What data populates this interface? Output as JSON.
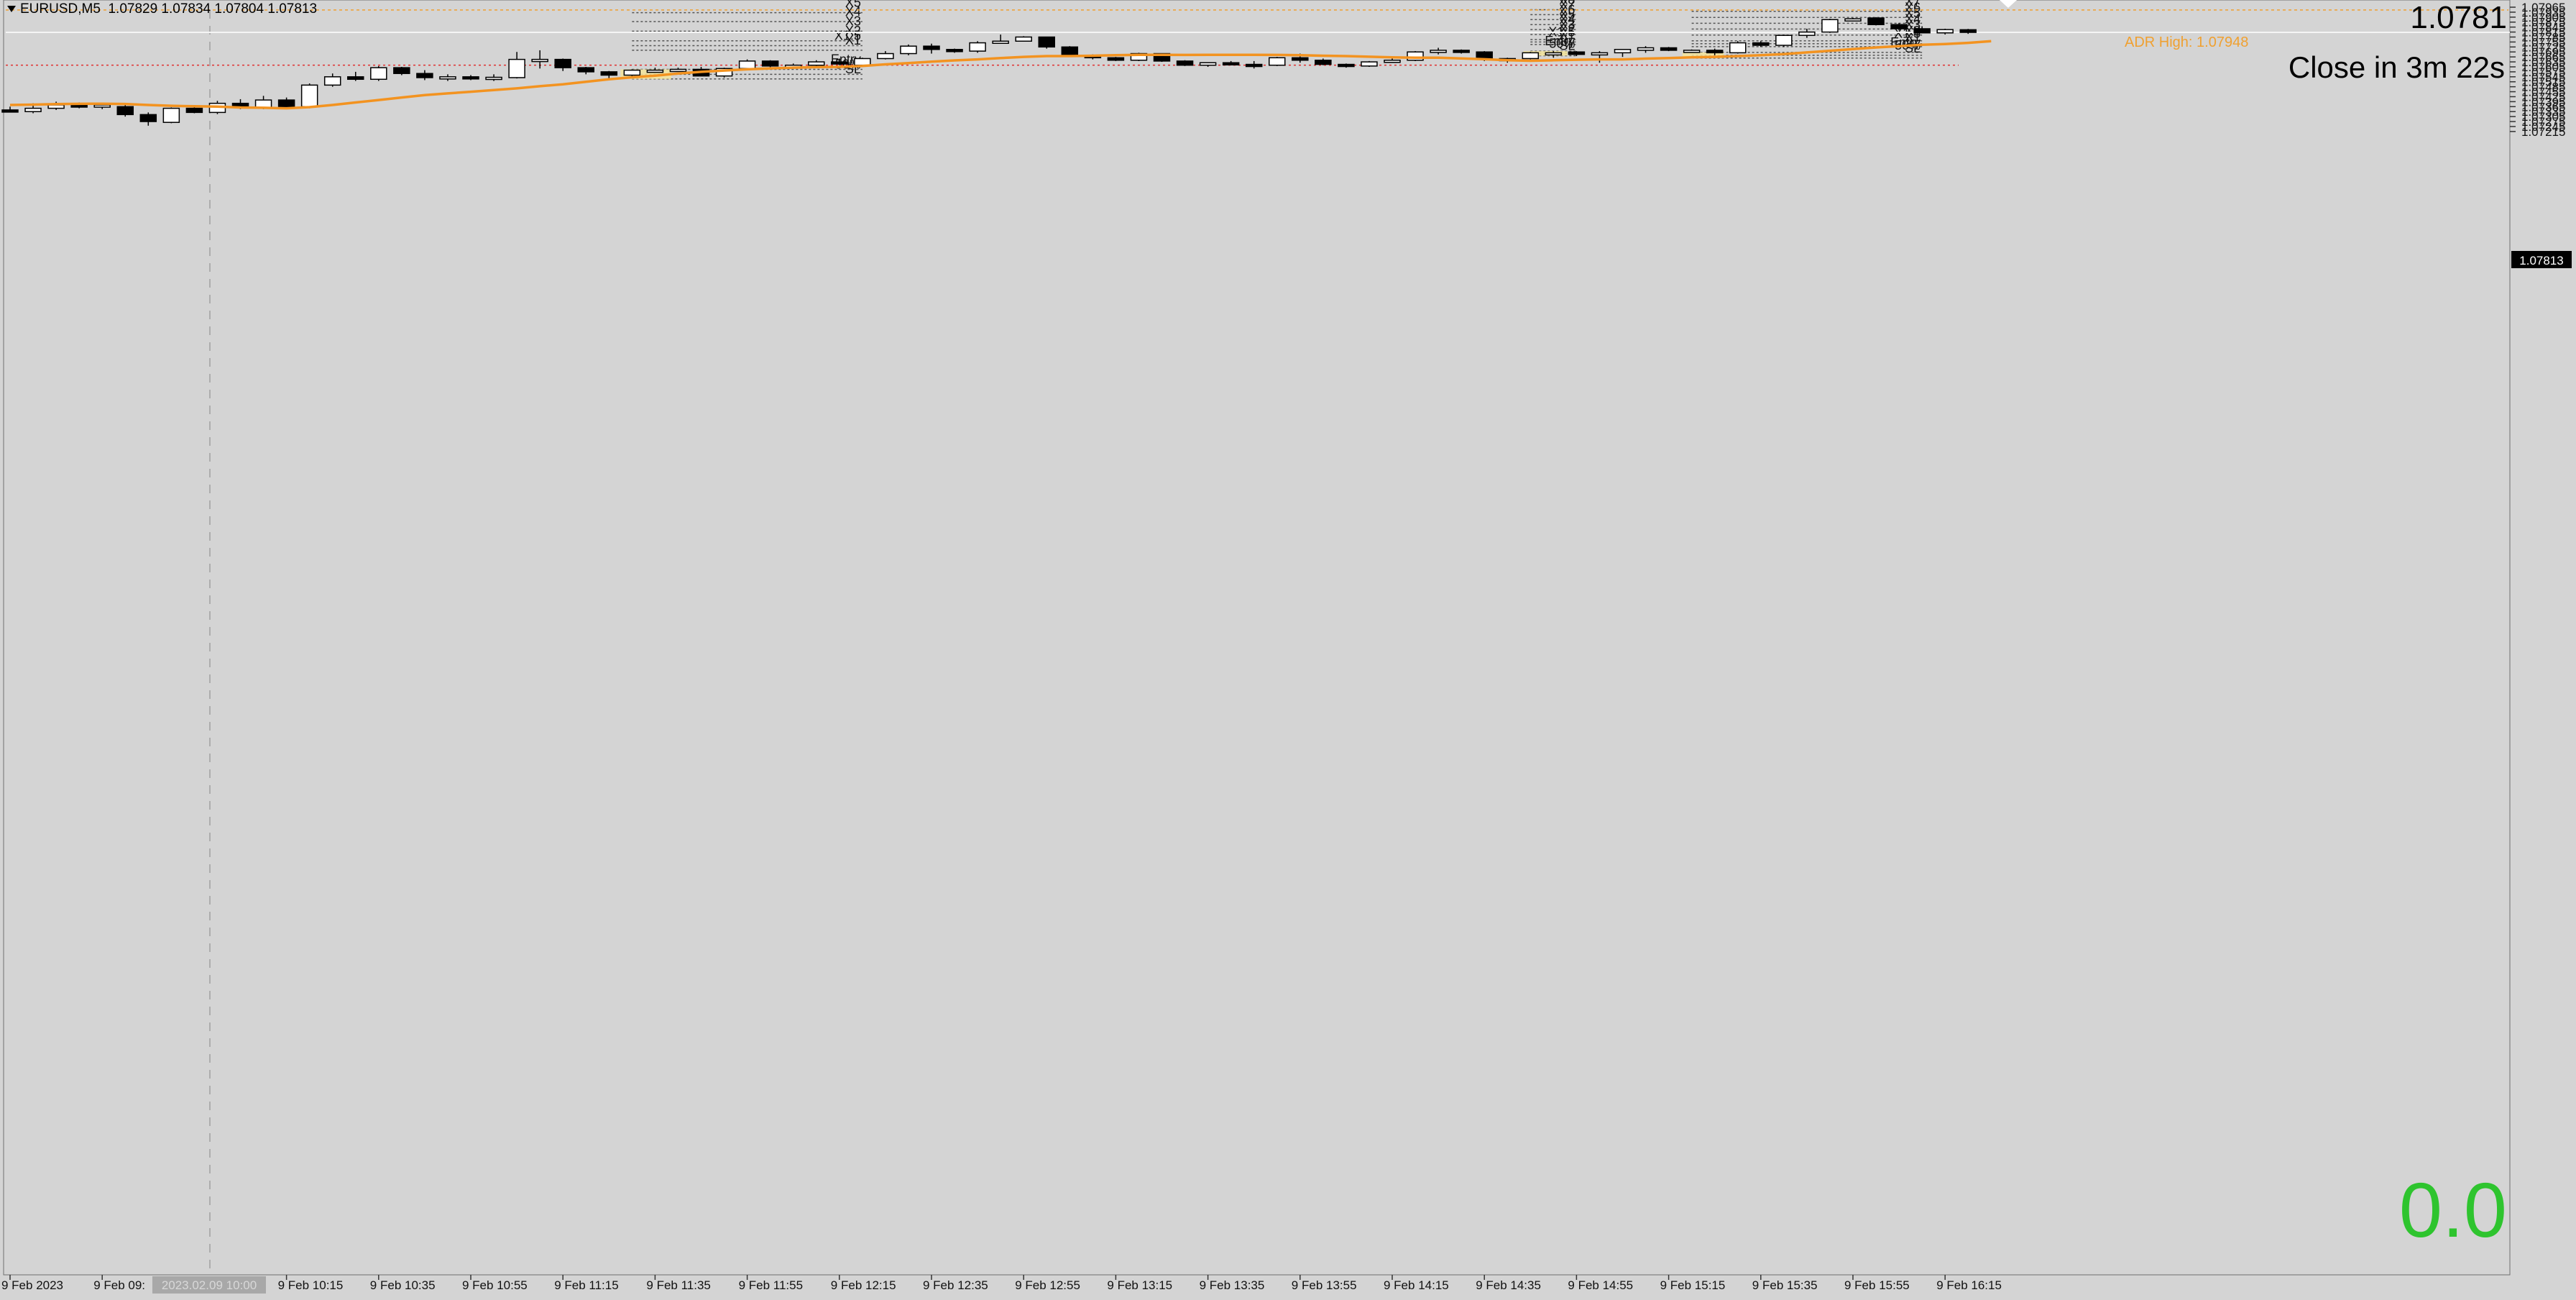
{
  "header": {
    "symbol": "EURUSD,M5",
    "ohlc": "1.07829 1.07834 1.07804 1.07813"
  },
  "overlay": {
    "price_big": "1.0781",
    "close_timer": "Close in 3m 22s",
    "adr_high": "ADR High: 1.07948",
    "counter": "0.0",
    "current_price_tag": "1.07813"
  },
  "colors": {
    "background": "#d4d4d4",
    "ma_line": "#f39320",
    "bull_fill": "#ffffff",
    "bear_fill": "#000000",
    "entry_box": "#f3e49a",
    "adr_line": "#f0a030",
    "red_level": "#e03030",
    "counter": "#2ec42e"
  },
  "chart_data": {
    "type": "candlestick",
    "symbol": "EURUSD",
    "timeframe": "M5",
    "ylim": [
      1.072,
      1.0796
    ],
    "y_ticks": [
      "1.07965",
      "1.07935",
      "1.07905",
      "1.07875",
      "1.07845",
      "1.07815",
      "1.07785",
      "1.07755",
      "1.07725",
      "1.07695",
      "1.07665",
      "1.07635",
      "1.07605",
      "1.07575",
      "1.07545",
      "1.07515",
      "1.07485",
      "1.07455",
      "1.07425",
      "1.07395",
      "1.07365",
      "1.07335",
      "1.07305",
      "1.07275",
      "1.07245",
      "1.07215"
    ],
    "x_ticks": [
      {
        "i": 0,
        "label": "9 Feb 2023"
      },
      {
        "i": 4,
        "label": "9 Feb 09:"
      },
      {
        "i": 12,
        "label": "9 Feb 10:15"
      },
      {
        "i": 16,
        "label": "9 Feb 10:35"
      },
      {
        "i": 20,
        "label": "9 Feb 10:55"
      },
      {
        "i": 24,
        "label": "9 Feb 11:15"
      },
      {
        "i": 28,
        "label": "9 Feb 11:35"
      },
      {
        "i": 32,
        "label": "9 Feb 11:55"
      },
      {
        "i": 36,
        "label": "9 Feb 12:15"
      },
      {
        "i": 40,
        "label": "9 Feb 12:35"
      },
      {
        "i": 44,
        "label": "9 Feb 12:55"
      },
      {
        "i": 48,
        "label": "9 Feb 13:15"
      },
      {
        "i": 52,
        "label": "9 Feb 13:35"
      },
      {
        "i": 56,
        "label": "9 Feb 13:55"
      },
      {
        "i": 60,
        "label": "9 Feb 14:15"
      },
      {
        "i": 64,
        "label": "9 Feb 14:35"
      },
      {
        "i": 68,
        "label": "9 Feb 14:55"
      },
      {
        "i": 72,
        "label": "9 Feb 15:15"
      },
      {
        "i": 76,
        "label": "9 Feb 15:35"
      },
      {
        "i": 80,
        "label": "9 Feb 15:55"
      },
      {
        "i": 84,
        "label": "9 Feb 16:15"
      }
    ],
    "crosshair_time_label": "2023.02.09 10:00",
    "candles": [
      [
        1.07345,
        1.07365,
        1.0733,
        1.07335
      ],
      [
        1.07335,
        1.07385,
        1.07325,
        1.07355
      ],
      [
        1.07355,
        1.07395,
        1.07345,
        1.07375
      ],
      [
        1.07375,
        1.0739,
        1.07355,
        1.07362
      ],
      [
        1.07362,
        1.0739,
        1.0735,
        1.07375
      ],
      [
        1.07365,
        1.07375,
        1.07305,
        1.07317
      ],
      [
        1.07317,
        1.0733,
        1.0725,
        1.07275
      ],
      [
        1.0727,
        1.0736,
        1.07265,
        1.07355
      ],
      [
        1.07355,
        1.07375,
        1.07325,
        1.0733
      ],
      [
        1.0733,
        1.074,
        1.0732,
        1.07385
      ],
      [
        1.07385,
        1.0741,
        1.0735,
        1.0736
      ],
      [
        1.0736,
        1.0743,
        1.0735,
        1.07405
      ],
      [
        1.07405,
        1.0742,
        1.07355,
        1.07365
      ],
      [
        1.07365,
        1.07505,
        1.07355,
        1.07495
      ],
      [
        1.07495,
        1.07565,
        1.07485,
        1.07545
      ],
      [
        1.07545,
        1.07575,
        1.0752,
        1.0753
      ],
      [
        1.0753,
        1.0761,
        1.0752,
        1.076
      ],
      [
        1.076,
        1.07605,
        1.07555,
        1.07565
      ],
      [
        1.07565,
        1.07585,
        1.07525,
        1.0754
      ],
      [
        1.0754,
        1.0756,
        1.0752,
        1.07545
      ],
      [
        1.07545,
        1.07555,
        1.07525,
        1.0754
      ],
      [
        1.0754,
        1.0756,
        1.0752,
        1.07542
      ],
      [
        1.0754,
        1.07695,
        1.07535,
        1.0765
      ],
      [
        1.0765,
        1.07705,
        1.07595,
        1.0765
      ],
      [
        1.0765,
        1.07655,
        1.0758,
        1.076
      ],
      [
        1.076,
        1.07605,
        1.0756,
        1.07575
      ],
      [
        1.07575,
        1.0758,
        1.0753,
        1.07555
      ],
      [
        1.07555,
        1.0759,
        1.0754,
        1.07585
      ],
      [
        1.0758,
        1.076,
        1.0757,
        1.07585
      ],
      [
        1.07585,
        1.076,
        1.07575,
        1.0759
      ],
      [
        1.0759,
        1.07605,
        1.07555,
        1.0755
      ],
      [
        1.0755,
        1.076,
        1.0754,
        1.07595
      ],
      [
        1.07595,
        1.0765,
        1.0759,
        1.0764
      ],
      [
        1.0764,
        1.07645,
        1.076,
        1.0761
      ],
      [
        1.0761,
        1.07625,
        1.07605,
        1.07615
      ],
      [
        1.07615,
        1.07645,
        1.07605,
        1.07635
      ],
      [
        1.07635,
        1.07655,
        1.07615,
        1.07625
      ],
      [
        1.07615,
        1.0766,
        1.0761,
        1.07655
      ],
      [
        1.07655,
        1.077,
        1.0765,
        1.07685
      ],
      [
        1.07685,
        1.0774,
        1.07675,
        1.0773
      ],
      [
        1.0773,
        1.07745,
        1.07685,
        1.0771
      ],
      [
        1.0771,
        1.07715,
        1.0769,
        1.077
      ],
      [
        1.077,
        1.0776,
        1.0769,
        1.0775
      ],
      [
        1.0775,
        1.078,
        1.07745,
        1.0776
      ],
      [
        1.0776,
        1.0779,
        1.0776,
        1.07785
      ],
      [
        1.07785,
        1.07785,
        1.07715,
        1.07725
      ],
      [
        1.07725,
        1.0773,
        1.07665,
        1.07675
      ],
      [
        1.07675,
        1.0768,
        1.0765,
        1.0766
      ],
      [
        1.0766,
        1.07665,
        1.0764,
        1.07645
      ],
      [
        1.07645,
        1.0769,
        1.0764,
        1.07685
      ],
      [
        1.07685,
        1.07685,
        1.07635,
        1.0764
      ],
      [
        1.0764,
        1.07645,
        1.0761,
        1.07615
      ],
      [
        1.07615,
        1.0763,
        1.07605,
        1.0763
      ],
      [
        1.0763,
        1.0764,
        1.07615,
        1.0762
      ],
      [
        1.0762,
        1.0764,
        1.07595,
        1.07615
      ],
      [
        1.07615,
        1.07665,
        1.0761,
        1.0766
      ],
      [
        1.0766,
        1.07685,
        1.0763,
        1.07645
      ],
      [
        1.07645,
        1.07655,
        1.07615,
        1.0762
      ],
      [
        1.0762,
        1.07625,
        1.076,
        1.0761
      ],
      [
        1.0761,
        1.0764,
        1.07605,
        1.07635
      ],
      [
        1.07635,
        1.07655,
        1.0763,
        1.07645
      ],
      [
        1.07645,
        1.077,
        1.0764,
        1.07695
      ],
      [
        1.07695,
        1.0772,
        1.0768,
        1.07705
      ],
      [
        1.07705,
        1.0771,
        1.07685,
        1.07698
      ],
      [
        1.07695,
        1.077,
        1.0764,
        1.0765
      ],
      [
        1.0765,
        1.0766,
        1.0763,
        1.07655
      ],
      [
        1.07655,
        1.07695,
        1.0765,
        1.0769
      ],
      [
        1.0769,
        1.077,
        1.0766,
        1.0769
      ],
      [
        1.07695,
        1.077,
        1.0767,
        1.0768
      ],
      [
        1.0768,
        1.077,
        1.0763,
        1.0769
      ],
      [
        1.0769,
        1.07705,
        1.07665,
        1.0771
      ],
      [
        1.07705,
        1.0773,
        1.0769,
        1.0772
      ],
      [
        1.0772,
        1.07725,
        1.077,
        1.07705
      ],
      [
        1.077,
        1.0771,
        1.0769,
        1.07705
      ],
      [
        1.07705,
        1.07715,
        1.07675,
        1.0769
      ],
      [
        1.0769,
        1.0776,
        1.07685,
        1.0775
      ],
      [
        1.0775,
        1.0776,
        1.07725,
        1.07735
      ],
      [
        1.07735,
        1.078,
        1.07725,
        1.07795
      ],
      [
        1.07795,
        1.07835,
        1.0778,
        1.07815
      ],
      [
        1.07815,
        1.07895,
        1.0781,
        1.0789
      ],
      [
        1.0789,
        1.079,
        1.0788,
        1.07895
      ],
      [
        1.079,
        1.07905,
        1.07855,
        1.0786
      ],
      [
        1.0786,
        1.0787,
        1.07825,
        1.07835
      ],
      [
        1.07835,
        1.0785,
        1.0781,
        1.0781
      ],
      [
        1.0781,
        1.07835,
        1.078,
        1.0783
      ],
      [
        1.07829,
        1.07834,
        1.07804,
        1.07813
      ]
    ],
    "ma": [
      1.07375,
      1.07377,
      1.0738,
      1.07382,
      1.07383,
      1.07381,
      1.07375,
      1.0737,
      1.07367,
      1.07365,
      1.0736,
      1.07358,
      1.07355,
      1.07362,
      1.07375,
      1.0739,
      1.07405,
      1.0742,
      1.07435,
      1.07445,
      1.07455,
      1.07465,
      1.07475,
      1.07488,
      1.075,
      1.07515,
      1.0753,
      1.07542,
      1.07552,
      1.07565,
      1.07575,
      1.07583,
      1.0759,
      1.07596,
      1.076,
      1.07603,
      1.07605,
      1.0761,
      1.0762,
      1.07628,
      1.07636,
      1.07644,
      1.0765,
      1.07658,
      1.07665,
      1.0767,
      1.0767,
      1.07672,
      1.07675,
      1.07678,
      1.07678,
      1.07677,
      1.07678,
      1.07678,
      1.07678,
      1.07677,
      1.07675,
      1.07672,
      1.0767,
      1.07666,
      1.07662,
      1.0766,
      1.0766,
      1.07656,
      1.07651,
      1.07645,
      1.07642,
      1.07645,
      1.07648,
      1.0765,
      1.0765,
      1.07655,
      1.07658,
      1.07662,
      1.07665,
      1.0767,
      1.07675,
      1.07682,
      1.07692,
      1.07702,
      1.07712,
      1.07722,
      1.0773,
      1.07738,
      1.07743,
      1.0775,
      1.0776
    ],
    "horizontal_lines": [
      {
        "name": "adr-high",
        "y": 1.07948
      },
      {
        "name": "red-level",
        "y": 1.07615
      },
      {
        "name": "current-price",
        "y": 1.07813
      }
    ],
    "setups": [
      {
        "x_range": [
          27,
          37
        ],
        "box_x": [
          26.5,
          28.7
        ],
        "levels": [
          {
            "label": "X5",
            "y": 1.07932
          },
          {
            "label": "X4",
            "y": 1.07878
          },
          {
            "label": "X3",
            "y": 1.0782
          },
          {
            "label": "X2",
            "y": 1.07762
          },
          {
            "label": "X1.5",
            "y": 1.07733
          },
          {
            "label": "X1",
            "y": 1.07705
          },
          {
            "label": "Entry",
            "y": 1.0759
          },
          {
            "label": "50%",
            "y": 1.0756
          },
          {
            "label": "SL",
            "y": 1.07532
          }
        ]
      },
      {
        "x_range": [
          66,
          68
        ],
        "box_x": [
          65.7,
          67.6
        ],
        "levels": [
          {
            "label": "X8",
            "y": 1.0795
          },
          {
            "label": "X7",
            "y": 1.0792
          },
          {
            "label": "X6",
            "y": 1.0789
          },
          {
            "label": "X5",
            "y": 1.0786
          },
          {
            "label": "X4",
            "y": 1.0783
          },
          {
            "label": "X3",
            "y": 1.078
          },
          {
            "label": "X2",
            "y": 1.0777
          },
          {
            "label": "X1.5",
            "y": 1.07755
          },
          {
            "label": "X1",
            "y": 1.0774
          },
          {
            "label": "Entry",
            "y": 1.077
          },
          {
            "label": "50%",
            "y": 1.07686
          },
          {
            "label": "SL",
            "y": 1.07672
          }
        ]
      },
      {
        "x_range": [
          73,
          83
        ],
        "box_x": [
          72.6,
          74.4
        ],
        "levels": [
          {
            "label": "X7",
            "y": 1.0794
          },
          {
            "label": "X6",
            "y": 1.07903
          },
          {
            "label": "X5",
            "y": 1.07868
          },
          {
            "label": "X4",
            "y": 1.07833
          },
          {
            "label": "X3",
            "y": 1.07797
          },
          {
            "label": "X2",
            "y": 1.07762
          },
          {
            "label": "X1.5",
            "y": 1.07745
          },
          {
            "label": "X1",
            "y": 1.07727
          },
          {
            "label": "Entry",
            "y": 1.07692
          },
          {
            "label": "50%",
            "y": 1.07675
          },
          {
            "label": "SL",
            "y": 1.07658
          }
        ]
      }
    ]
  }
}
